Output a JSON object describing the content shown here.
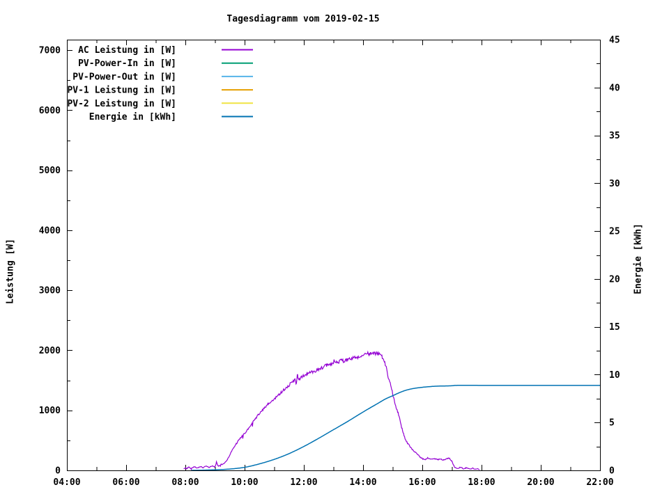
{
  "chart_data": {
    "type": "line",
    "title": "Tagesdiagramm vom 2019-02-15",
    "ylabel": "Leistung [W]",
    "y2label": "Energie [kWh]",
    "x_axis": {
      "unit": "time",
      "range_hours": [
        4,
        22
      ],
      "major_tick_hours": 2,
      "minor_tick_hours": 1,
      "tick_labels": [
        "04:00",
        "06:00",
        "08:00",
        "10:00",
        "12:00",
        "14:00",
        "16:00",
        "18:00",
        "20:00",
        "22:00"
      ]
    },
    "y_left_axis": {
      "label": "Leistung [W]",
      "ticks": [
        0,
        1000,
        2000,
        3000,
        4000,
        5000,
        6000,
        7000
      ],
      "minor_step": 500,
      "axis_top_value": 7175,
      "grid": false
    },
    "y_right_axis": {
      "label": "Energie [kWh]",
      "ticks": [
        0,
        5,
        10,
        15,
        20,
        25,
        30,
        35,
        40,
        45
      ],
      "minor_step": 2.5,
      "axis_top_value": 45,
      "grid": false
    },
    "legend_position": "top-left-inside",
    "series": [
      {
        "name": "AC Leistung in [W]",
        "color": "#9400d3",
        "axis": "left",
        "noisy": true,
        "points": [
          [
            7.95,
            20
          ],
          [
            8.0,
            45
          ],
          [
            8.05,
            25
          ],
          [
            8.1,
            55
          ],
          [
            8.2,
            35
          ],
          [
            8.3,
            60
          ],
          [
            8.4,
            40
          ],
          [
            8.5,
            65
          ],
          [
            8.6,
            45
          ],
          [
            8.7,
            70
          ],
          [
            8.8,
            50
          ],
          [
            8.9,
            75
          ],
          [
            9.0,
            60
          ],
          [
            9.05,
            130
          ],
          [
            9.1,
            75
          ],
          [
            9.2,
            95
          ],
          [
            9.3,
            115
          ],
          [
            9.4,
            170
          ],
          [
            9.5,
            260
          ],
          [
            9.6,
            350
          ],
          [
            9.7,
            430
          ],
          [
            9.8,
            500
          ],
          [
            9.9,
            560
          ],
          [
            10.0,
            615
          ],
          [
            10.1,
            680
          ],
          [
            10.2,
            745
          ],
          [
            10.3,
            815
          ],
          [
            10.4,
            885
          ],
          [
            10.5,
            950
          ],
          [
            10.6,
            1000
          ],
          [
            10.7,
            1050
          ],
          [
            10.8,
            1105
          ],
          [
            10.9,
            1145
          ],
          [
            11.0,
            1185
          ],
          [
            11.1,
            1235
          ],
          [
            11.2,
            1285
          ],
          [
            11.3,
            1330
          ],
          [
            11.4,
            1375
          ],
          [
            11.5,
            1420
          ],
          [
            11.6,
            1465
          ],
          [
            11.7,
            1505
          ],
          [
            11.75,
            1450
          ],
          [
            11.78,
            1610
          ],
          [
            11.82,
            1500
          ],
          [
            11.9,
            1545
          ],
          [
            12.0,
            1580
          ],
          [
            12.1,
            1605
          ],
          [
            12.2,
            1625
          ],
          [
            12.3,
            1645
          ],
          [
            12.4,
            1665
          ],
          [
            12.5,
            1690
          ],
          [
            12.6,
            1710
          ],
          [
            12.7,
            1730
          ],
          [
            12.8,
            1755
          ],
          [
            12.9,
            1770
          ],
          [
            13.0,
            1785
          ],
          [
            13.1,
            1800
          ],
          [
            13.2,
            1815
          ],
          [
            13.25,
            1870
          ],
          [
            13.3,
            1825
          ],
          [
            13.4,
            1840
          ],
          [
            13.5,
            1850
          ],
          [
            13.6,
            1860
          ],
          [
            13.7,
            1875
          ],
          [
            13.8,
            1890
          ],
          [
            13.9,
            1900
          ],
          [
            14.0,
            1915
          ],
          [
            14.1,
            1930
          ],
          [
            14.2,
            1945
          ],
          [
            14.3,
            1950
          ],
          [
            14.4,
            1945
          ],
          [
            14.5,
            1940
          ],
          [
            14.6,
            1925
          ],
          [
            14.65,
            1880
          ],
          [
            14.7,
            1840
          ],
          [
            14.75,
            1760
          ],
          [
            14.8,
            1690
          ],
          [
            14.85,
            1560
          ],
          [
            14.9,
            1480
          ],
          [
            14.95,
            1390
          ],
          [
            15.0,
            1280
          ],
          [
            15.05,
            1180
          ],
          [
            15.1,
            1080
          ],
          [
            15.15,
            1010
          ],
          [
            15.2,
            930
          ],
          [
            15.25,
            820
          ],
          [
            15.3,
            720
          ],
          [
            15.35,
            640
          ],
          [
            15.4,
            560
          ],
          [
            15.45,
            500
          ],
          [
            15.5,
            450
          ],
          [
            15.55,
            420
          ],
          [
            15.6,
            390
          ],
          [
            15.7,
            330
          ],
          [
            15.8,
            290
          ],
          [
            15.9,
            235
          ],
          [
            16.0,
            195
          ],
          [
            16.1,
            185
          ],
          [
            16.2,
            205
          ],
          [
            16.3,
            185
          ],
          [
            16.4,
            195
          ],
          [
            16.5,
            180
          ],
          [
            16.6,
            190
          ],
          [
            16.7,
            175
          ],
          [
            16.8,
            185
          ],
          [
            16.9,
            205
          ],
          [
            16.95,
            175
          ],
          [
            17.0,
            150
          ],
          [
            17.05,
            95
          ],
          [
            17.1,
            50
          ],
          [
            17.2,
            30
          ],
          [
            17.3,
            55
          ],
          [
            17.4,
            25
          ],
          [
            17.5,
            45
          ],
          [
            17.6,
            20
          ],
          [
            17.7,
            35
          ],
          [
            17.8,
            15
          ],
          [
            17.88,
            25
          ],
          [
            17.93,
            5
          ]
        ]
      },
      {
        "name": "PV-Power-In in [W]",
        "color": "#009e73",
        "axis": "left",
        "noisy": false,
        "points": []
      },
      {
        "name": "PV-Power-Out in [W]",
        "color": "#56b4e9",
        "axis": "left",
        "noisy": false,
        "points": []
      },
      {
        "name": "PV-1 Leistung in [W]",
        "color": "#e69f00",
        "axis": "left",
        "noisy": false,
        "points": []
      },
      {
        "name": "PV-2 Leistung in [W]",
        "color": "#f0e442",
        "axis": "left",
        "noisy": false,
        "points": []
      },
      {
        "name": "Energie in [kWh]",
        "color": "#0072b2",
        "axis": "right",
        "noisy": false,
        "points": [
          [
            8.2,
            0.0
          ],
          [
            8.5,
            0.02
          ],
          [
            9.0,
            0.06
          ],
          [
            9.5,
            0.14
          ],
          [
            10.0,
            0.32
          ],
          [
            10.5,
            0.68
          ],
          [
            11.0,
            1.15
          ],
          [
            11.5,
            1.75
          ],
          [
            12.0,
            2.5
          ],
          [
            12.5,
            3.35
          ],
          [
            13.0,
            4.25
          ],
          [
            13.5,
            5.15
          ],
          [
            14.0,
            6.1
          ],
          [
            14.5,
            7.0
          ],
          [
            14.75,
            7.45
          ],
          [
            15.0,
            7.8
          ],
          [
            15.25,
            8.15
          ],
          [
            15.5,
            8.42
          ],
          [
            15.75,
            8.58
          ],
          [
            16.0,
            8.68
          ],
          [
            16.25,
            8.75
          ],
          [
            16.5,
            8.8
          ],
          [
            17.0,
            8.84
          ],
          [
            17.17,
            8.88
          ],
          [
            18.0,
            8.88
          ],
          [
            22.0,
            8.88
          ]
        ]
      }
    ]
  }
}
